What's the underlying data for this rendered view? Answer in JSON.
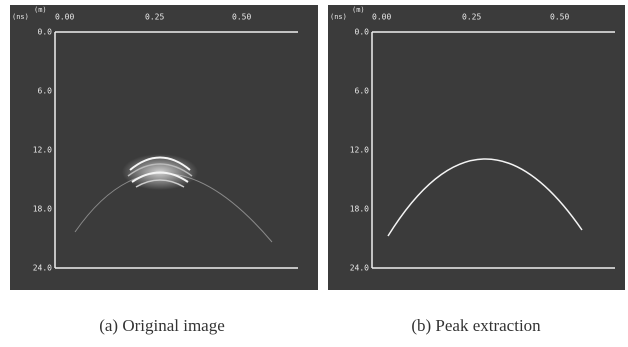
{
  "panels": [
    {
      "unit_y": "(ns)",
      "unit_x": "(m)",
      "x_ticks": [
        "0.00",
        "0.25",
        "0.50"
      ],
      "y_ticks": [
        "0.0",
        "6.0",
        "12.0",
        "18.0",
        "24.0"
      ],
      "caption": "(a) Original image"
    },
    {
      "unit_y": "(ns)",
      "unit_x": "(m)",
      "x_ticks": [
        "0.00",
        "0.25",
        "0.50"
      ],
      "y_ticks": [
        "0.0",
        "6.0",
        "12.0",
        "18.0",
        "24.0"
      ],
      "caption": "(b) Peak extraction"
    }
  ]
}
